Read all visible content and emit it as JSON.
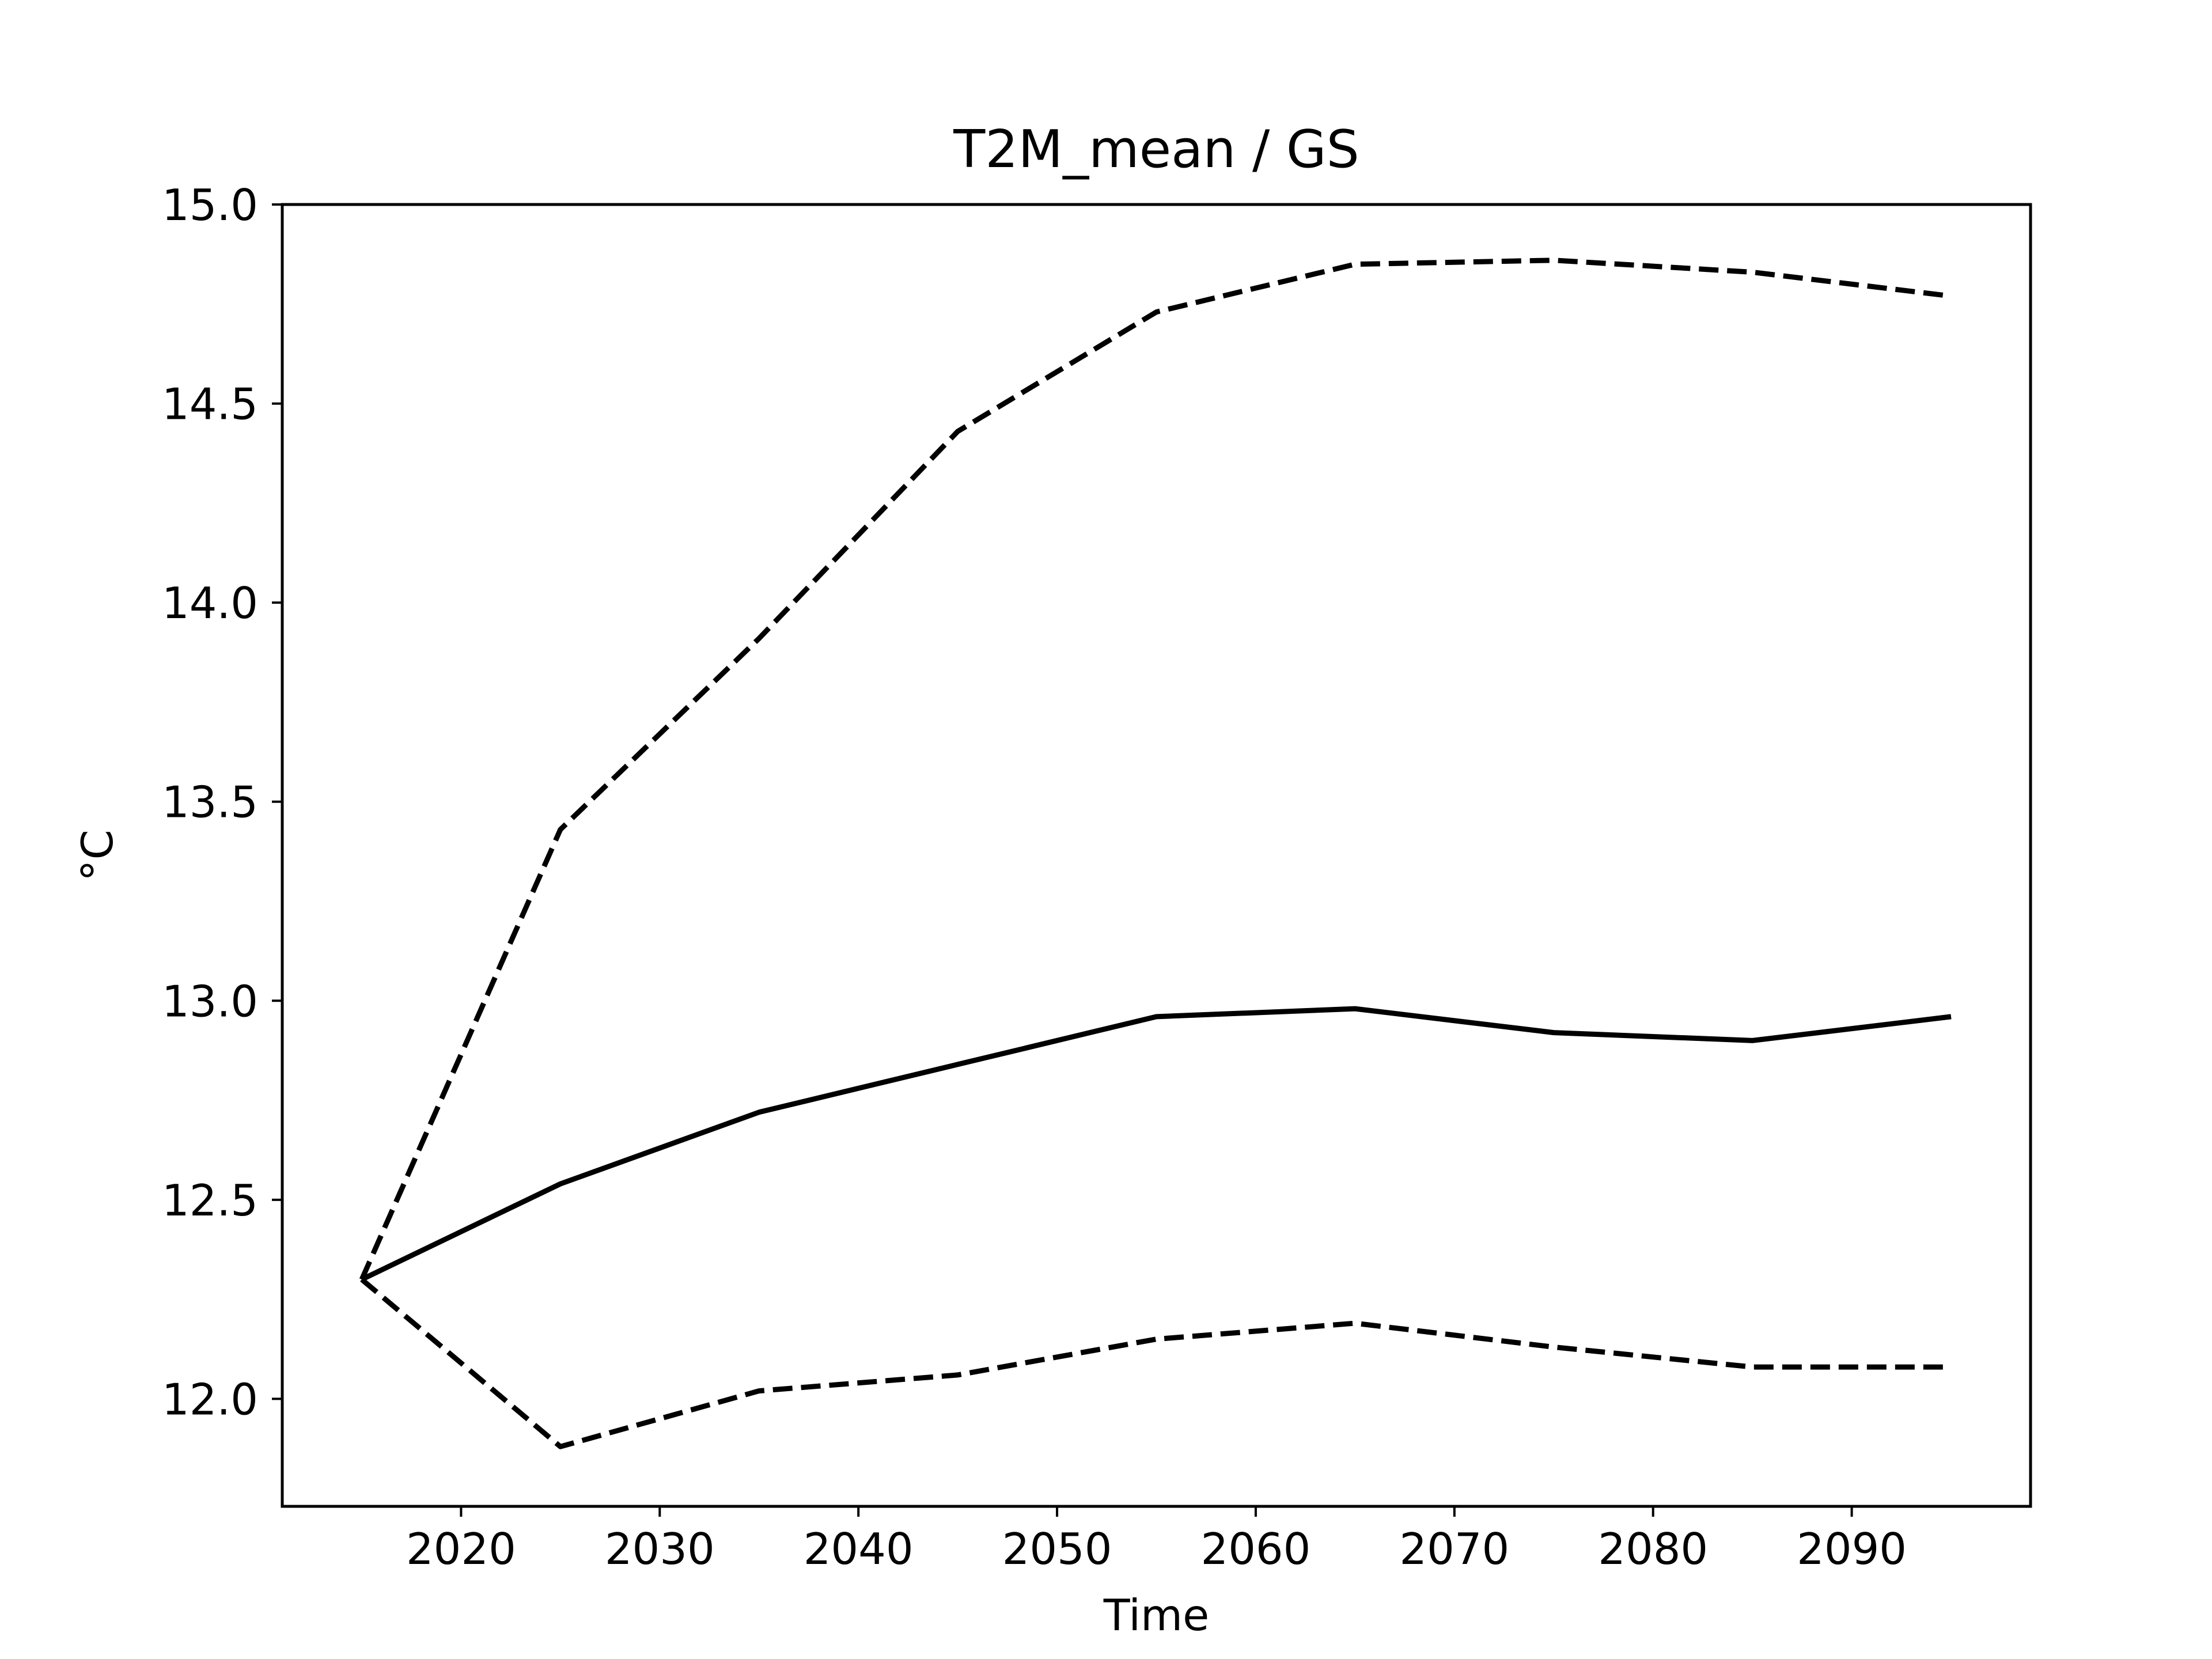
{
  "chart_data": {
    "type": "line",
    "title": "T2M_mean / GS",
    "xlabel": "Time",
    "ylabel": "°C",
    "xlim": [
      2011,
      2099
    ],
    "ylim": [
      11.73,
      15.0
    ],
    "x_ticks": [
      2020,
      2030,
      2040,
      2050,
      2060,
      2070,
      2080,
      2090
    ],
    "y_ticks": [
      12.0,
      12.5,
      13.0,
      13.5,
      14.0,
      14.5,
      15.0
    ],
    "y_tick_labels": [
      "12.0",
      "12.5",
      "13.0",
      "13.5",
      "14.0",
      "14.5",
      "15.0"
    ],
    "x": [
      2015,
      2025,
      2035,
      2045,
      2055,
      2065,
      2075,
      2085,
      2095
    ],
    "grid": false,
    "legend": "none",
    "series": [
      {
        "style": "solid",
        "color": "#000000",
        "values": [
          12.3,
          12.54,
          12.72,
          12.84,
          12.96,
          12.98,
          12.92,
          12.9,
          12.96
        ]
      },
      {
        "style": "dashed",
        "color": "#000000",
        "values": [
          12.3,
          13.43,
          13.91,
          14.43,
          14.73,
          14.85,
          14.86,
          14.83,
          14.77
        ]
      },
      {
        "style": "dashed",
        "color": "#000000",
        "values": [
          12.3,
          11.88,
          12.02,
          12.06,
          12.15,
          12.19,
          12.13,
          12.08,
          12.08
        ]
      }
    ]
  }
}
